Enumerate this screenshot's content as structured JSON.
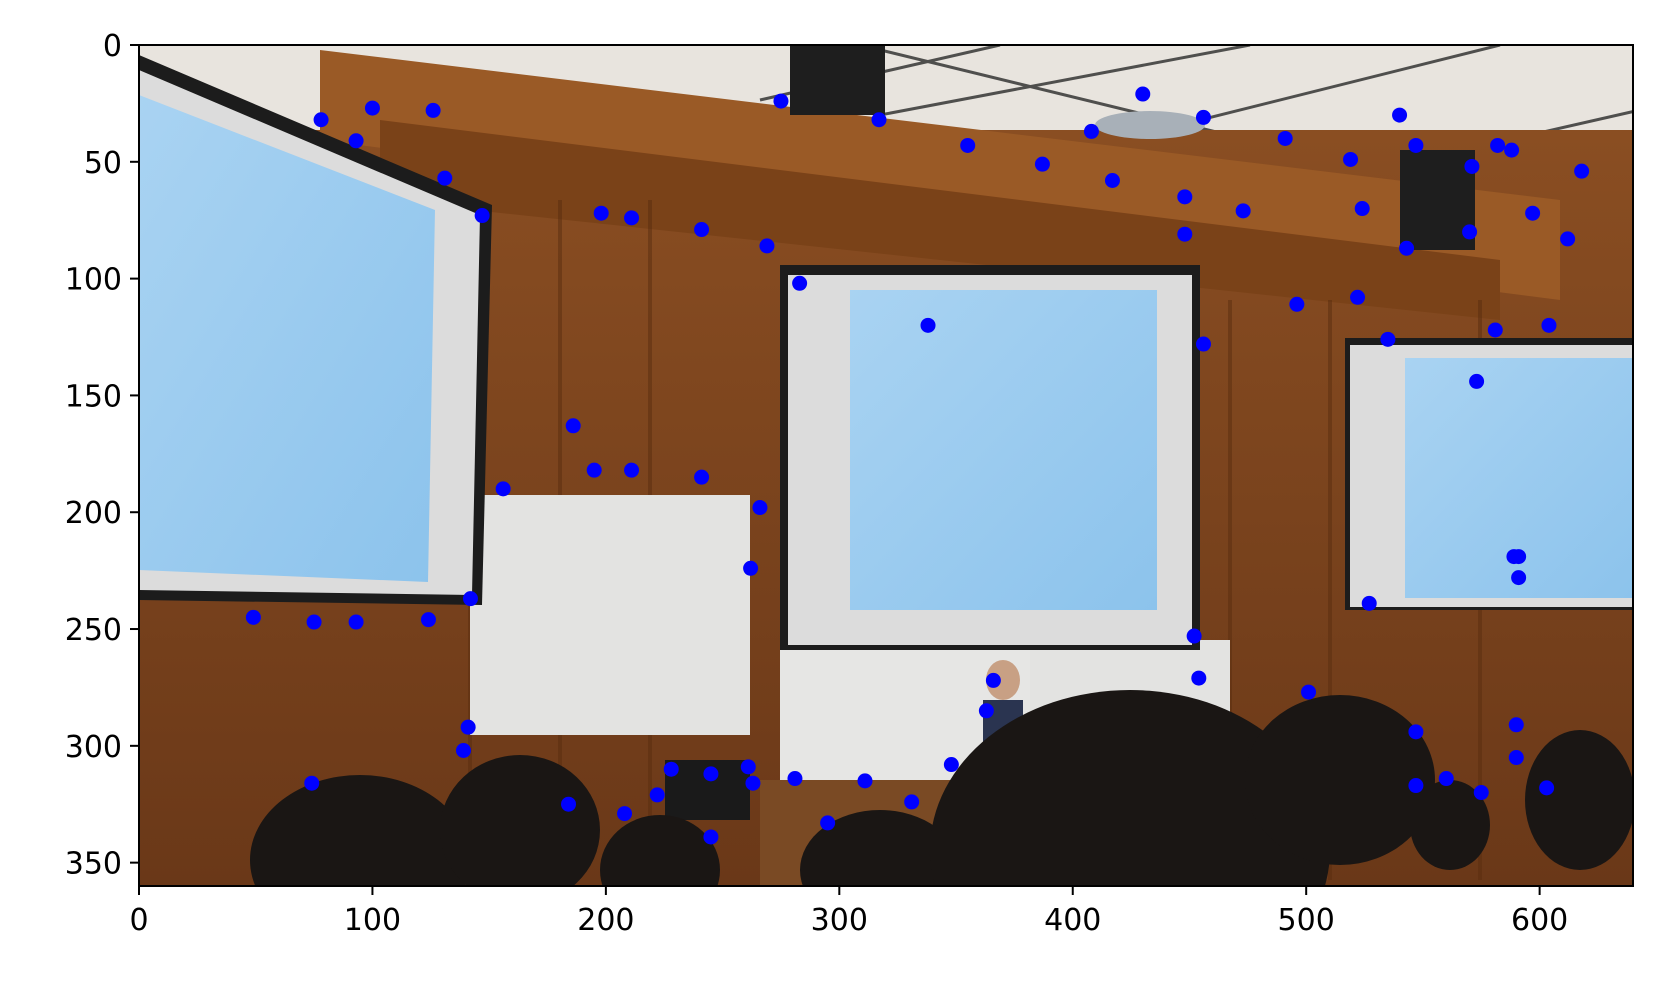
{
  "chart_data": {
    "type": "scatter",
    "title": "",
    "xlabel": "",
    "ylabel": "",
    "xlim": [
      0,
      640
    ],
    "ylim": [
      360,
      0
    ],
    "y_inverted": true,
    "grid": false,
    "background": "photograph of a lecture hall with three projection screens",
    "x_ticks": [
      0,
      100,
      200,
      300,
      400,
      500,
      600
    ],
    "y_ticks": [
      0,
      50,
      100,
      150,
      200,
      250,
      300,
      350
    ],
    "x_tick_labels": [
      "0",
      "100",
      "200",
      "300",
      "400",
      "500",
      "600"
    ],
    "y_tick_labels": [
      "0",
      "50",
      "100",
      "150",
      "200",
      "250",
      "300",
      "350"
    ],
    "marker_color": "#0000ff",
    "series": [
      {
        "x": [
          78,
          93,
          100,
          126,
          131,
          147,
          275,
          317,
          338,
          355,
          387,
          408,
          417,
          430,
          448,
          456,
          473,
          491,
          496,
          519,
          522,
          524,
          535,
          540,
          543,
          547,
          571,
          573,
          581,
          582,
          588,
          591,
          597,
          604,
          612,
          618,
          198,
          211,
          241,
          269,
          283,
          156,
          186,
          195,
          211,
          241,
          266,
          262,
          142,
          49,
          75,
          93,
          124,
          141,
          139,
          74,
          184,
          208,
          222,
          228,
          245,
          245,
          261,
          263,
          281,
          295,
          311,
          331,
          348,
          363,
          366,
          452,
          454,
          456,
          501,
          527,
          547,
          547,
          560,
          575,
          590,
          590,
          603,
          591,
          589,
          570,
          448
        ],
        "y": [
          32,
          41,
          27,
          28,
          57,
          73,
          24,
          32,
          120,
          43,
          51,
          37,
          58,
          21,
          65,
          31,
          71,
          40,
          111,
          49,
          108,
          70,
          126,
          30,
          87,
          43,
          52,
          144,
          122,
          43,
          45,
          219,
          72,
          120,
          83,
          54,
          72,
          74,
          79,
          86,
          102,
          190,
          163,
          182,
          182,
          185,
          198,
          224,
          237,
          245,
          247,
          247,
          246,
          292,
          302,
          316,
          325,
          329,
          321,
          310,
          312,
          339,
          309,
          316,
          314,
          333,
          315,
          324,
          308,
          285,
          272,
          253,
          271,
          128,
          277,
          239,
          294,
          317,
          314,
          320,
          291,
          305,
          318,
          228,
          219,
          80,
          81
        ]
      }
    ]
  }
}
